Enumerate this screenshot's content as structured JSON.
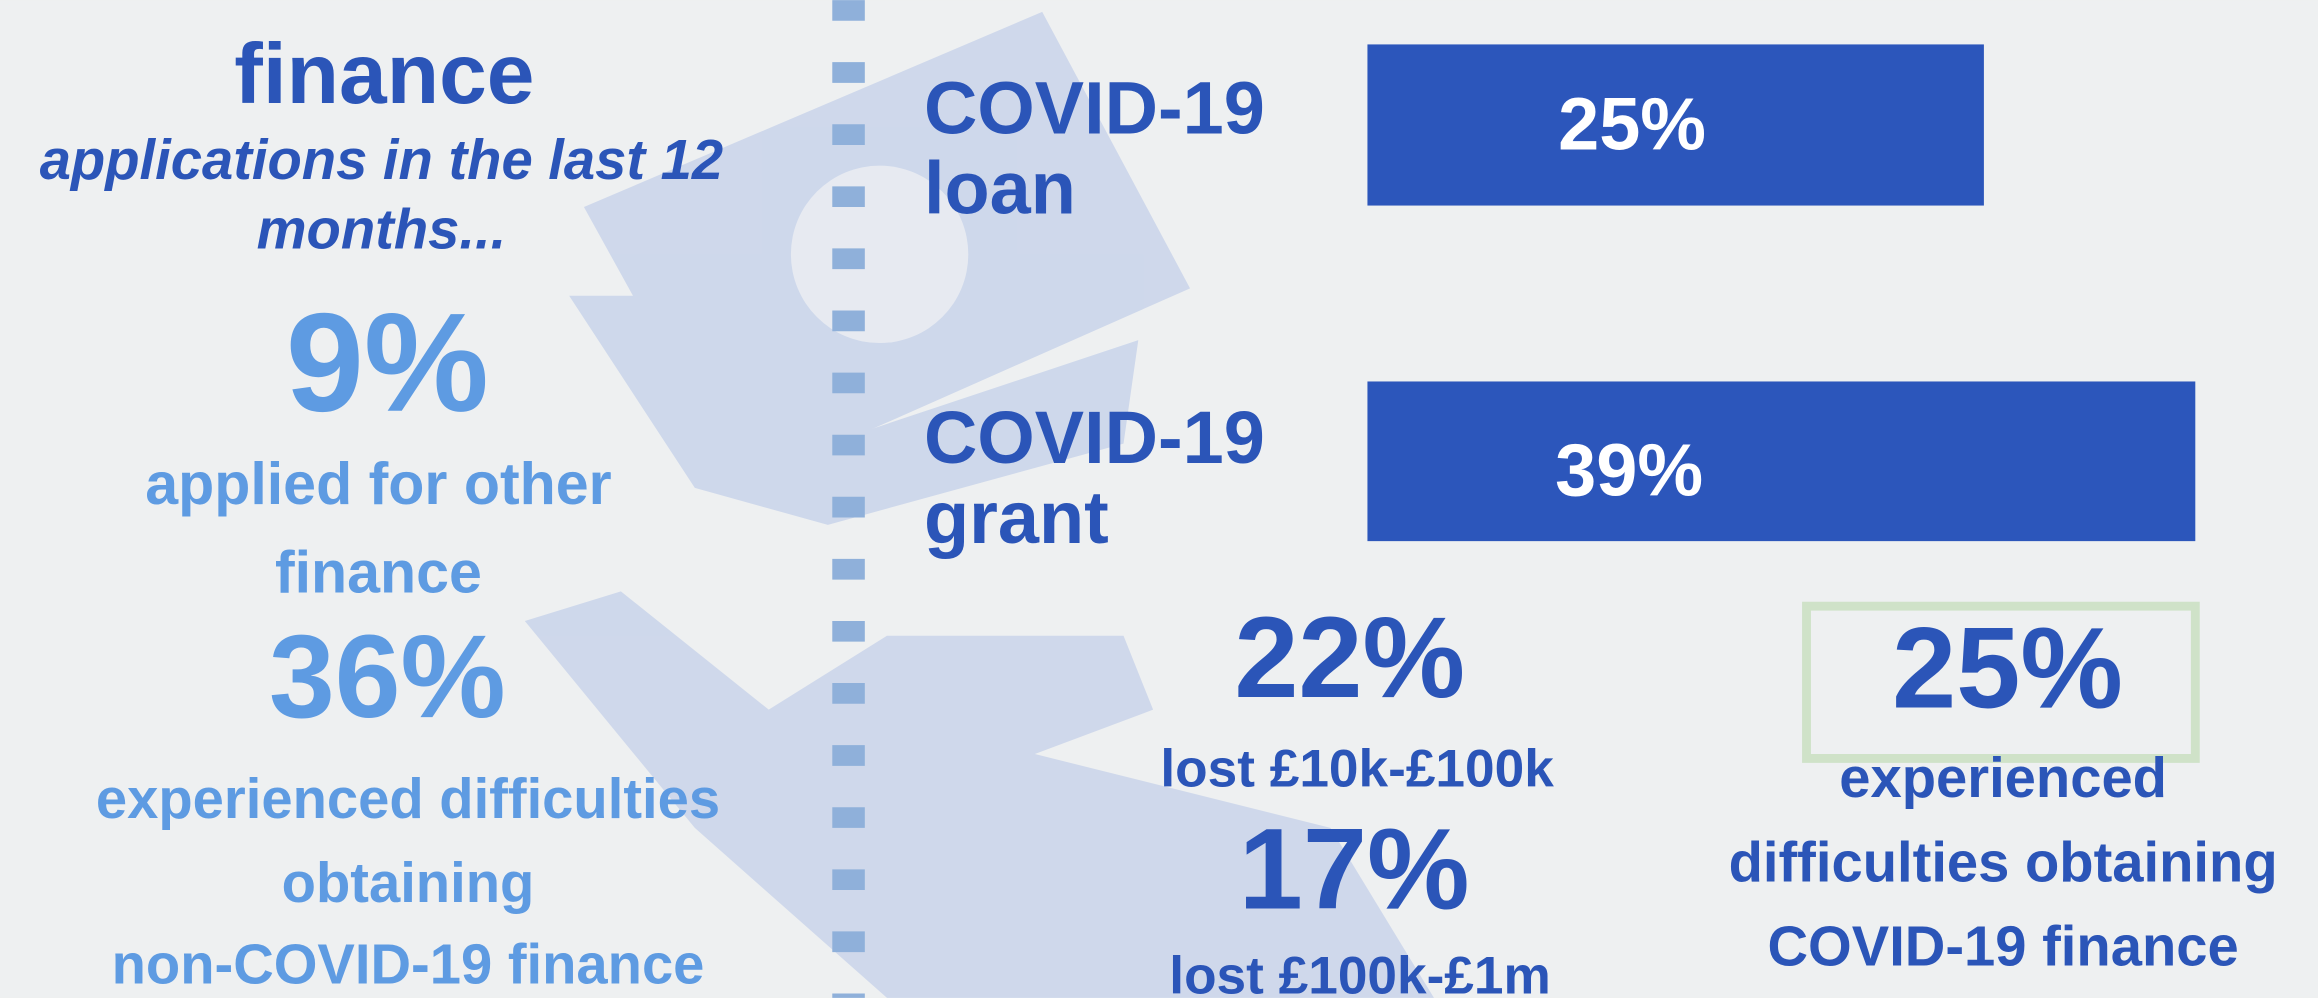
{
  "left": {
    "heading": "finance",
    "subheading": [
      "applications in the last 12",
      "months..."
    ],
    "stats": [
      {
        "value": "9%",
        "label": [
          "applied for other",
          "finance"
        ]
      },
      {
        "value": "36%",
        "label": [
          "experienced difficulties",
          "obtaining",
          "non-COVID-19 finance"
        ]
      }
    ]
  },
  "bars": [
    {
      "label": [
        "COVID-19",
        "loan"
      ],
      "value": "25%"
    },
    {
      "label": [
        "COVID-19",
        "grant"
      ],
      "value": "39%"
    }
  ],
  "losses": [
    {
      "value": "22%",
      "label": "lost £10k-£100k"
    },
    {
      "value": "17%",
      "label": "lost £100k-£1m"
    }
  ],
  "highlight": {
    "value": "25%",
    "label": [
      "experienced",
      "difficulties obtaining",
      "COVID-19 finance"
    ]
  }
}
